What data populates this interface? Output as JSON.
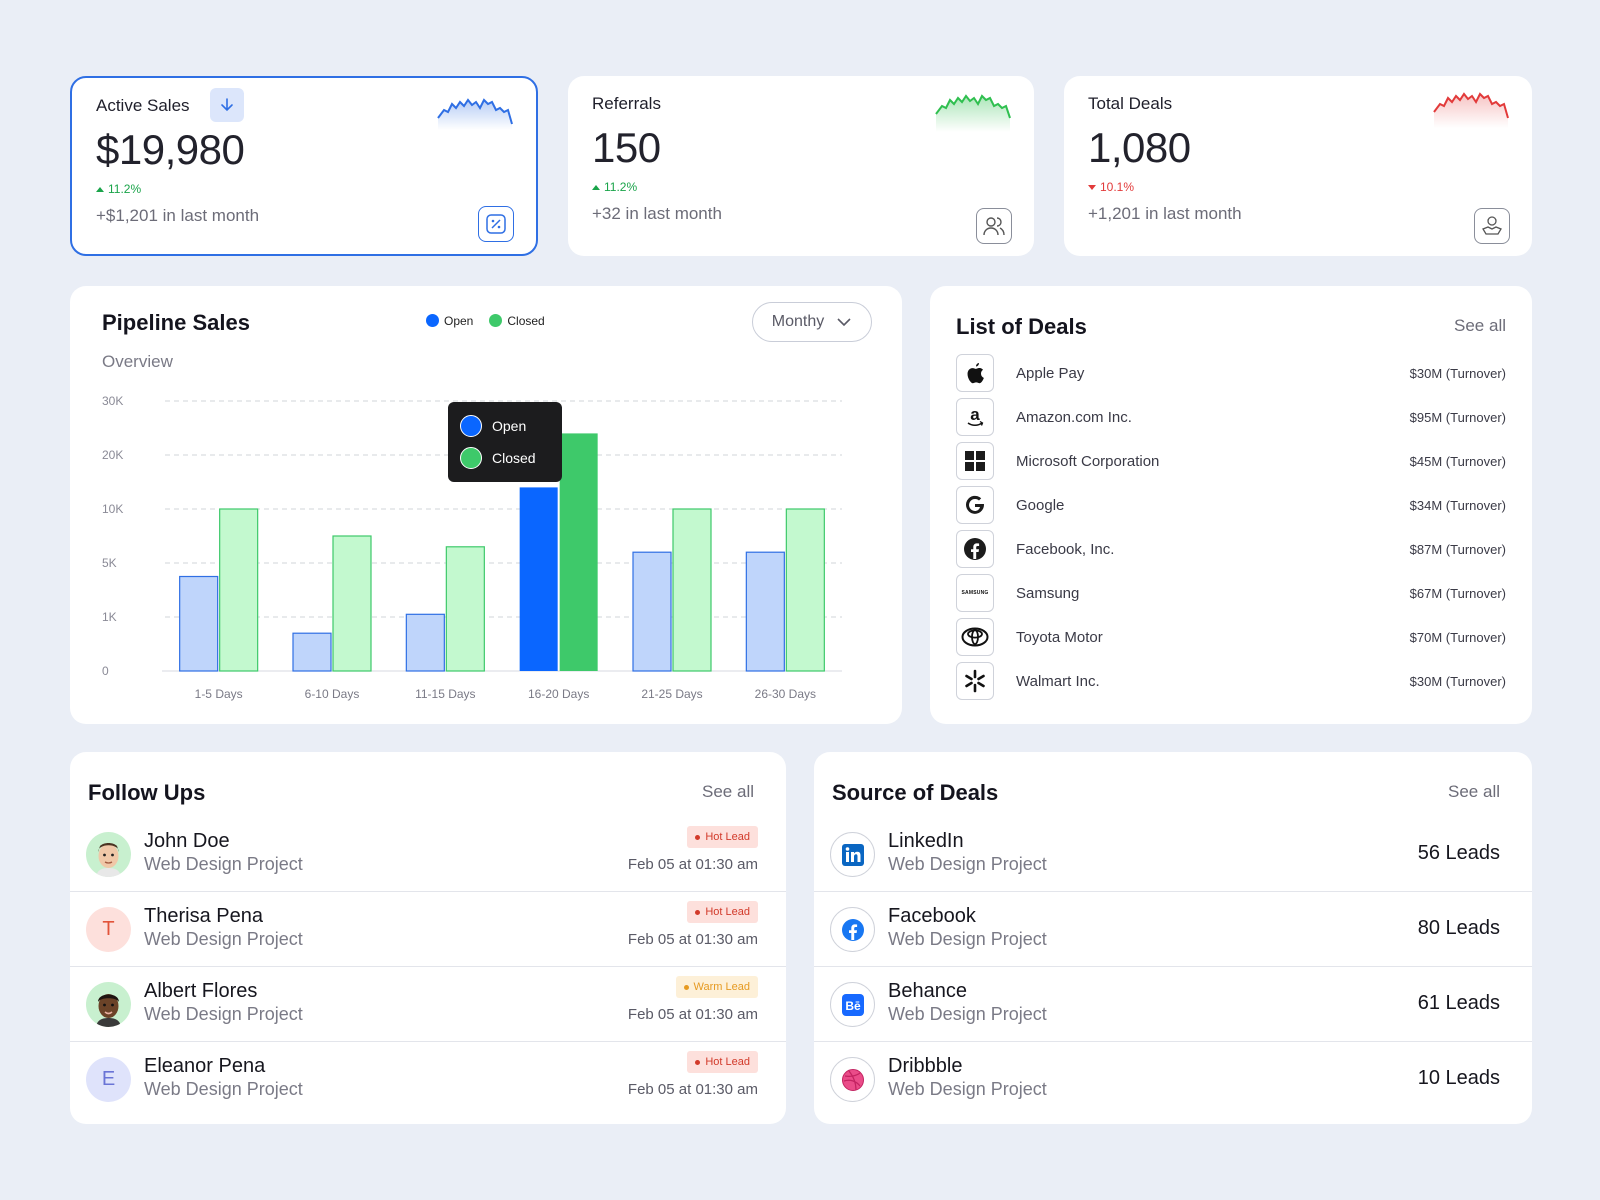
{
  "stats": [
    {
      "title": "Active Sales",
      "value": "$19,980",
      "change": "11.2%",
      "direction": "up",
      "sub": "+$1,201 in last month",
      "icon": "percent-icon",
      "spark_color": "#2f6fe4"
    },
    {
      "title": "Referrals",
      "value": "150",
      "change": "11.2%",
      "direction": "up",
      "sub": "+32 in last month",
      "icon": "users-icon",
      "spark_color": "#2fbf4f"
    },
    {
      "title": "Total Deals",
      "value": "1,080",
      "change": "10.1%",
      "direction": "down",
      "sub": "+1,201 in last month",
      "icon": "handshake-icon",
      "spark_color": "#e23a3a"
    }
  ],
  "pipeline": {
    "title": "Pipeline Sales",
    "subtitle": "Overview",
    "filter": "Monthy",
    "legend": [
      "Open",
      "Closed"
    ],
    "tooltip": [
      "Open",
      "Closed"
    ]
  },
  "chart_data": {
    "type": "bar",
    "categories": [
      "1-5 Days",
      "6-10 Days",
      "11-15 Days",
      "16-20 Days",
      "21-25 Days",
      "26-30 Days"
    ],
    "y_ticks": [
      "30K",
      "20K",
      "10K",
      "5K",
      "1K",
      "0"
    ],
    "series": [
      {
        "name": "Open",
        "values": [
          4,
          0.7,
          1.2,
          14,
          6,
          6
        ],
        "color": "#bfd5fb",
        "highlight_color": "#0a66ff"
      },
      {
        "name": "Closed",
        "values": [
          10,
          7.5,
          6.5,
          24,
          10,
          10
        ],
        "color": "#c3f9cf",
        "highlight_color": "#3ec96a"
      }
    ],
    "highlight_index": 3,
    "grid": true,
    "legend_position": "top"
  },
  "deals": {
    "title": "List of Deals",
    "see_all": "See all",
    "items": [
      {
        "name": "Apple Pay",
        "value": "$30M (Turnover)",
        "icon": "apple-icon"
      },
      {
        "name": "Amazon.com Inc.",
        "value": "$95M (Turnover)",
        "icon": "amazon-icon"
      },
      {
        "name": "Microsoft Corporation",
        "value": "$45M (Turnover)",
        "icon": "microsoft-icon"
      },
      {
        "name": "Google",
        "value": "$34M (Turnover)",
        "icon": "google-icon"
      },
      {
        "name": "Facebook, Inc.",
        "value": "$87M (Turnover)",
        "icon": "facebook-icon"
      },
      {
        "name": "Samsung",
        "value": "$67M (Turnover)",
        "icon": "samsung-icon",
        "logo_text": "SAMSUNG"
      },
      {
        "name": "Toyota Motor",
        "value": "$70M (Turnover)",
        "icon": "toyota-icon"
      },
      {
        "name": "Walmart Inc.",
        "value": "$30M (Turnover)",
        "icon": "walmart-icon"
      }
    ]
  },
  "followups": {
    "title": "Follow Ups",
    "see_all": "See all",
    "items": [
      {
        "name": "John Doe",
        "project": "Web Design Project",
        "badge": "Hot Lead",
        "badge_type": "hot",
        "date": "Feb 05 at 01:30 am",
        "avatar": "memoji-avatar"
      },
      {
        "name": "Therisa Pena",
        "project": "Web Design Project",
        "badge": "Hot Lead",
        "badge_type": "hot",
        "date": "Feb 05 at 01:30 am",
        "initial": "T"
      },
      {
        "name": "Albert Flores",
        "project": "Web Design Project",
        "badge": "Warm Lead",
        "badge_type": "warm",
        "date": "Feb 05 at 01:30 am",
        "avatar": "memoji-avatar"
      },
      {
        "name": "Eleanor Pena",
        "project": "Web Design Project",
        "badge": "Hot Lead",
        "badge_type": "hot",
        "date": "Feb 05 at 01:30 am",
        "initial": "E"
      }
    ]
  },
  "sources": {
    "title": "Source of Deals",
    "see_all": "See all",
    "items": [
      {
        "name": "LinkedIn",
        "project": "Web Design Project",
        "leads": "56 Leads",
        "icon": "linkedin-icon"
      },
      {
        "name": "Facebook",
        "project": "Web Design Project",
        "leads": "80 Leads",
        "icon": "facebook-icon"
      },
      {
        "name": "Behance",
        "project": "Web Design Project",
        "leads": "61 Leads",
        "icon": "behance-icon"
      },
      {
        "name": "Dribbble",
        "project": "Web Design Project",
        "leads": "10 Leads",
        "icon": "dribbble-icon"
      }
    ]
  }
}
